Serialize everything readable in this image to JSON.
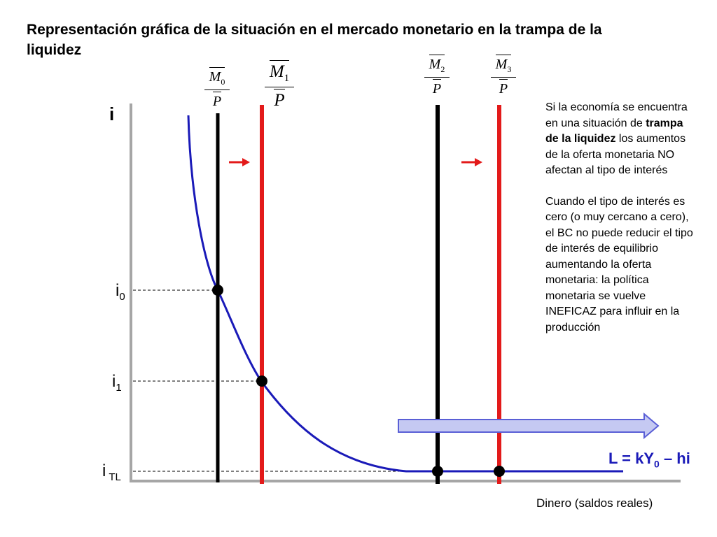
{
  "title": "Representación gráfica de la situación en el mercado monetario en la trampa de la liquidez",
  "y_axis_label": "i",
  "x_axis_label": "Dinero (saldos reales)",
  "interest_levels": {
    "i0": {
      "base": "i",
      "sub": "0"
    },
    "i1": {
      "base": "i",
      "sub": "1"
    },
    "itl": {
      "base": "i",
      "sub": "TL"
    }
  },
  "money_supply_labels": [
    {
      "num": "M",
      "sub": "0",
      "den": "P",
      "color": "#000000"
    },
    {
      "num": "M",
      "sub": "1",
      "den": "P",
      "color": "#e31a1a"
    },
    {
      "num": "M",
      "sub": "2",
      "den": "P",
      "color": "#000000"
    },
    {
      "num": "M",
      "sub": "3",
      "den": "P",
      "color": "#e31a1a"
    }
  ],
  "demand_curve": {
    "prefix": "L = kY",
    "sub": "0",
    "suffix": " – hi",
    "color": "#1a1ab8"
  },
  "side_text": {
    "p1_start": "Si la economía se encuentra en una situación de ",
    "p1_bold": "trampa de la liquidez",
    "p1_end": " los aumentos de la oferta monetaria NO afectan al tipo de interés",
    "p2": "Cuando el tipo de interés es cero (o muy cercano a cero), el BC no puede reducir el tipo de interés de equilibrio aumentando la oferta monetaria: la política monetaria se vuelve INEFICAZ para influir en la producción"
  },
  "colors": {
    "axis": "#a6a6a6",
    "supply_black": "#000000",
    "supply_red": "#e31a1a",
    "demand": "#1a1ab8",
    "big_arrow_fill": "#c5c9f2",
    "big_arrow_stroke": "#5a5fd6"
  }
}
